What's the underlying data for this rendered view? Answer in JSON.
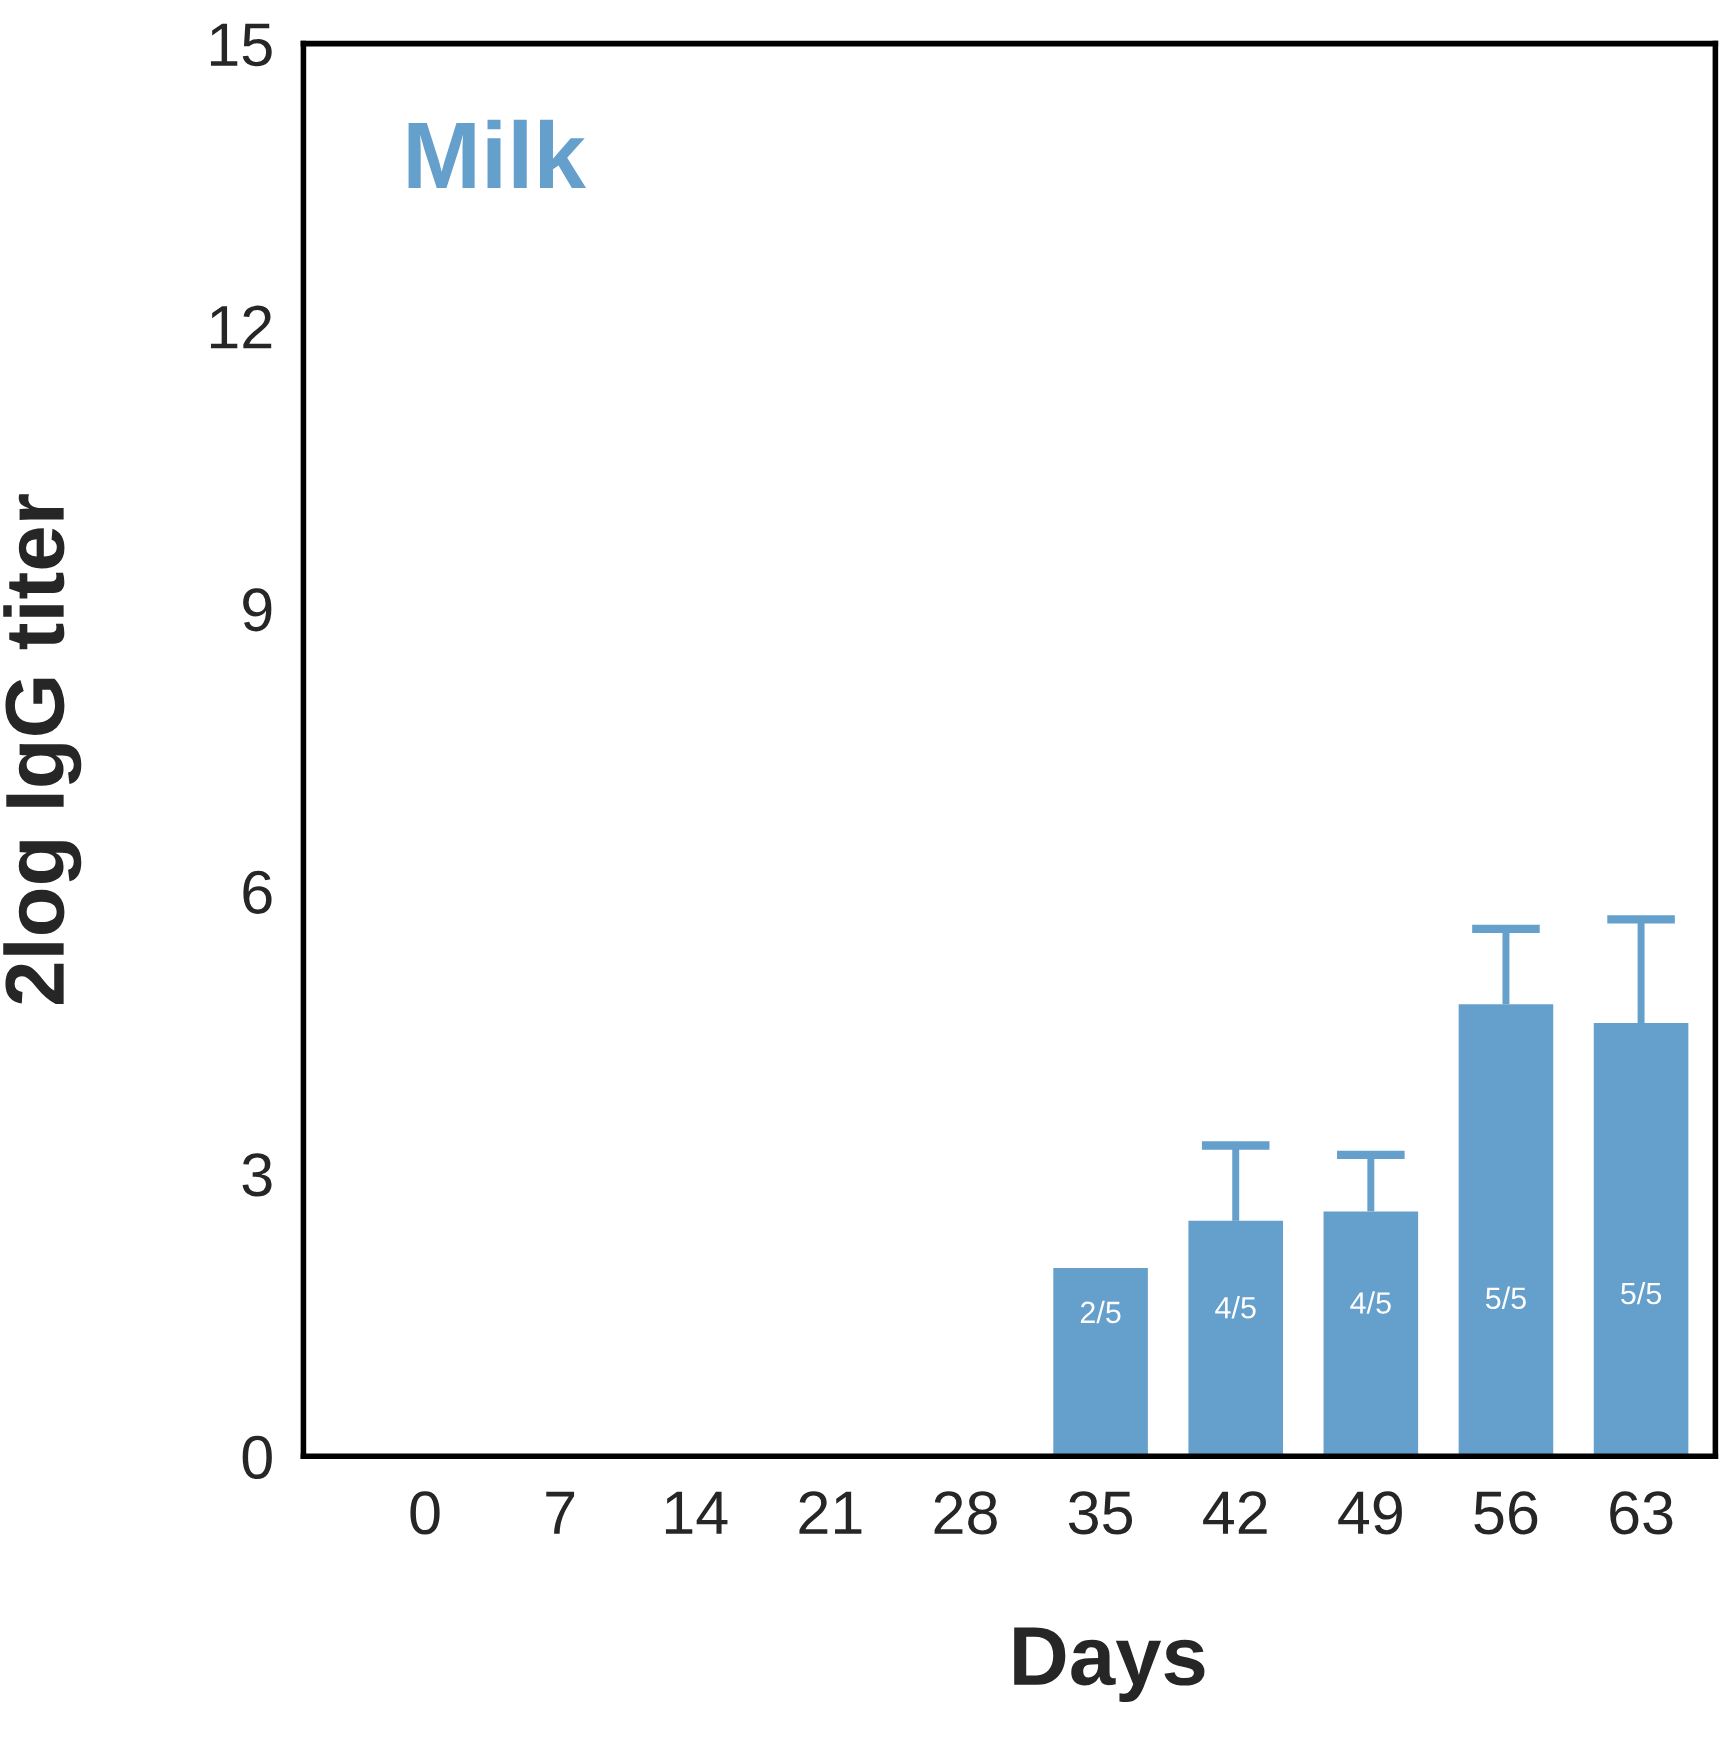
{
  "chart_data": {
    "type": "bar",
    "title": "Milk",
    "xlabel": "Days",
    "ylabel": "2log IgG titer",
    "categories": [
      "0",
      "7",
      "14",
      "21",
      "28",
      "35",
      "42",
      "49",
      "56",
      "63"
    ],
    "values": [
      0,
      0,
      0,
      0,
      0,
      2.0,
      2.5,
      2.6,
      4.8,
      4.6
    ],
    "errors": [
      null,
      null,
      null,
      null,
      null,
      null,
      [
        2.5,
        3.3
      ],
      [
        2.6,
        3.2
      ],
      [
        4.8,
        5.6
      ],
      [
        4.6,
        5.7
      ]
    ],
    "annotations": [
      "2/5",
      "4/5",
      "4/5",
      "5/5",
      "5/5"
    ],
    "color": "#659fcb",
    "ylim": [
      0,
      15
    ],
    "yticks": [
      0,
      3,
      6,
      9,
      12,
      15
    ],
    "grid": false
  }
}
